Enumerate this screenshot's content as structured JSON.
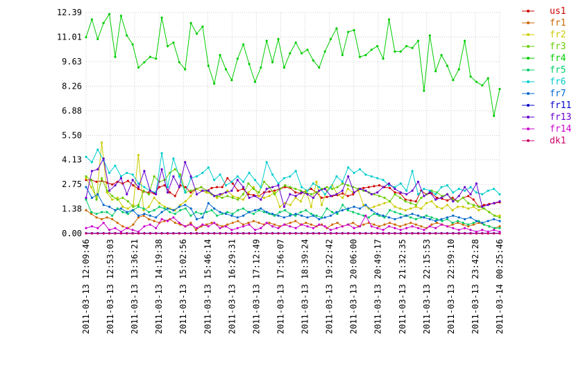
{
  "chart_data": {
    "type": "line",
    "title": "",
    "xlabel": "",
    "ylabel": "",
    "ylim": [
      0,
      12.39
    ],
    "y_ticks": [
      "0.00",
      "1.38",
      "2.75",
      "4.13",
      "5.50",
      "6.88",
      "8.26",
      "9.63",
      "11.01",
      "12.39"
    ],
    "x_ticks": [
      "2011-03-13 12:09:46",
      "2011-03-13 12:53:03",
      "2011-03-13 13:36:21",
      "2011-03-13 14:19:38",
      "2011-03-13 15:02:56",
      "2011-03-13 15:46:14",
      "2011-03-13 16:29:31",
      "2011-03-13 17:12:49",
      "2011-03-13 17:56:07",
      "2011-03-13 18:39:24",
      "2011-03-13 19:22:42",
      "2011-03-13 20:06:00",
      "2011-03-13 20:49:17",
      "2011-03-13 21:32:35",
      "2011-03-13 22:15:53",
      "2011-03-13 22:59:10",
      "2011-03-13 23:42:28",
      "2011-03-14 00:25:46"
    ],
    "grid": true,
    "legend_position": "right",
    "series": [
      {
        "name": "us1",
        "color": "#cc0000",
        "values": [
          3.0,
          3.0,
          2.9,
          2.95,
          2.85,
          2.75,
          2.9,
          2.8,
          2.95,
          2.7,
          2.5,
          2.35,
          2.3,
          2.25,
          2.6,
          2.7,
          2.3,
          2.1,
          2.7,
          2.6,
          2.3,
          2.5,
          2.6,
          2.4,
          2.55,
          2.6,
          2.6,
          3.1,
          2.8,
          2.4,
          2.5,
          2.2,
          2.15,
          2.1,
          2.3,
          2.35,
          2.4,
          2.5,
          2.6,
          2.55,
          2.3,
          2.25,
          2.4,
          2.5,
          2.3,
          2.0,
          2.05,
          2.1,
          2.15,
          2.25,
          2.1,
          2.2,
          2.5,
          2.55,
          2.6,
          2.65,
          2.7,
          2.6,
          2.55,
          2.3,
          2.25,
          1.9,
          1.85,
          1.8,
          2.4,
          2.2,
          2.25,
          2.0,
          1.95,
          1.85,
          2.0,
          1.8,
          2.0,
          2.1,
          1.9,
          1.5,
          1.6,
          1.65,
          1.7,
          1.75
        ]
      },
      {
        "name": "fr1",
        "color": "#cc6600",
        "values": [
          1.3,
          1.1,
          0.9,
          0.8,
          0.9,
          0.8,
          0.6,
          0.4,
          0.3,
          0.5,
          0.9,
          1.0,
          0.8,
          0.7,
          0.6,
          0.7,
          0.8,
          0.6,
          0.5,
          0.4,
          0.6,
          0.2,
          0.4,
          0.5,
          0.6,
          0.5,
          0.4,
          0.5,
          0.6,
          0.7,
          0.5,
          0.6,
          0.7,
          0.6,
          0.5,
          0.6,
          0.5,
          0.4,
          0.5,
          0.6,
          0.7,
          0.5,
          0.6,
          0.5,
          0.4,
          0.5,
          0.3,
          0.5,
          0.6,
          0.4,
          0.5,
          0.6,
          0.4,
          0.5,
          0.6,
          0.5,
          0.4,
          0.5,
          0.6,
          0.5,
          0.4,
          0.5,
          0.6,
          0.5,
          0.4,
          0.3,
          0.5,
          0.6,
          0.5,
          0.4,
          0.5,
          0.6,
          0.5,
          0.4,
          0.5,
          0.6,
          0.5,
          0.4,
          0.3,
          0.4
        ]
      },
      {
        "name": "fr2",
        "color": "#cccc00",
        "values": [
          3.1,
          2.6,
          2.0,
          5.1,
          2.3,
          1.9,
          2.0,
          1.5,
          1.4,
          1.6,
          4.4,
          1.3,
          1.5,
          2.0,
          1.7,
          1.5,
          1.4,
          1.3,
          1.6,
          1.8,
          2.1,
          2.5,
          2.4,
          2.3,
          2.2,
          2.0,
          2.2,
          2.4,
          2.1,
          2.0,
          1.9,
          2.3,
          2.6,
          2.1,
          2.0,
          2.1,
          2.3,
          1.5,
          1.7,
          1.6,
          2.0,
          1.8,
          2.4,
          1.5,
          2.9,
          1.6,
          2.4,
          2.7,
          2.2,
          2.0,
          2.5,
          2.3,
          2.4,
          1.6,
          1.4,
          1.5,
          1.6,
          1.7,
          1.8,
          1.5,
          1.4,
          1.3,
          1.4,
          1.5,
          1.4,
          1.7,
          1.8,
          1.5,
          1.4,
          1.6,
          1.3,
          1.5,
          1.5,
          1.4,
          1.5,
          1.3,
          1.4,
          1.2,
          1.0,
          1.0
        ]
      },
      {
        "name": "fr3",
        "color": "#66cc00",
        "values": [
          3.2,
          3.0,
          1.9,
          3.1,
          2.4,
          2.1,
          1.9,
          2.0,
          1.8,
          1.5,
          1.6,
          2.4,
          2.2,
          3.2,
          2.9,
          3.0,
          3.4,
          3.6,
          3.3,
          2.3,
          2.4,
          2.5,
          2.6,
          2.4,
          2.2,
          2.1,
          2.0,
          2.1,
          2.0,
          1.9,
          2.2,
          2.8,
          2.5,
          2.3,
          2.9,
          2.6,
          2.2,
          2.5,
          2.7,
          2.6,
          2.5,
          2.4,
          2.3,
          2.2,
          2.3,
          2.5,
          2.6,
          2.5,
          2.6,
          2.8,
          2.7,
          2.6,
          2.5,
          2.4,
          2.3,
          2.2,
          2.1,
          2.0,
          1.8,
          2.2,
          2.0,
          1.8,
          1.7,
          1.6,
          2.0,
          2.2,
          2.4,
          2.3,
          2.1,
          2.2,
          1.9,
          1.8,
          2.0,
          1.7,
          1.6,
          1.5,
          1.4,
          1.2,
          1.0,
          0.9
        ]
      },
      {
        "name": "fr4",
        "color": "#00cc00",
        "values": [
          11.0,
          12.0,
          10.9,
          11.8,
          12.3,
          9.9,
          12.2,
          11.1,
          10.6,
          9.3,
          9.6,
          9.9,
          9.8,
          12.1,
          10.5,
          10.7,
          9.6,
          9.2,
          11.8,
          11.2,
          11.6,
          9.4,
          8.4,
          10.0,
          9.2,
          8.6,
          9.8,
          10.6,
          9.5,
          8.5,
          9.3,
          10.8,
          9.6,
          10.9,
          9.3,
          10.1,
          10.7,
          10.1,
          10.3,
          9.7,
          9.3,
          10.2,
          10.9,
          11.5,
          10.0,
          11.3,
          11.4,
          9.9,
          10.0,
          10.3,
          10.5,
          9.8,
          12.0,
          10.2,
          10.2,
          10.5,
          10.4,
          10.8,
          8.0,
          11.1,
          9.1,
          10.0,
          9.4,
          8.6,
          9.2,
          10.8,
          8.8,
          8.5,
          8.3,
          8.7,
          6.6,
          8.1
        ]
      },
      {
        "name": "fr5",
        "color": "#00cc66",
        "values": [
          1.9,
          1.2,
          1.1,
          1.2,
          1.2,
          1.0,
          1.4,
          1.2,
          1.1,
          1.3,
          1.5,
          1.4,
          1.2,
          1.3,
          1.5,
          1.4,
          1.2,
          1.1,
          1.3,
          1.4,
          1.0,
          1.2,
          1.1,
          1.2,
          1.3,
          1.0,
          1.1,
          1.2,
          1.1,
          1.3,
          1.4,
          1.2,
          1.1,
          1.3,
          1.2,
          1.1,
          1.0,
          1.2,
          1.3,
          1.1,
          1.0,
          1.2,
          1.3,
          1.1,
          1.0,
          0.9,
          1.4,
          1.2,
          1.1,
          1.6,
          1.3,
          1.2,
          1.1,
          1.0,
          0.9,
          1.1,
          1.0,
          0.9,
          1.3,
          1.2,
          1.1,
          1.0,
          0.9,
          0.8,
          0.9,
          1.0,
          0.9,
          0.8,
          0.7,
          0.8,
          0.6,
          0.7,
          0.6,
          0.5,
          0.6,
          0.7,
          0.5,
          0.4,
          0.3,
          0.3
        ]
      },
      {
        "name": "fr6",
        "color": "#00cccc",
        "values": [
          4.3,
          4.0,
          4.7,
          4.1,
          3.4,
          3.8,
          3.2,
          3.4,
          3.3,
          2.8,
          2.6,
          2.4,
          2.3,
          4.5,
          2.6,
          4.2,
          3.2,
          2.3,
          3.1,
          3.2,
          3.4,
          3.7,
          3.0,
          3.3,
          2.7,
          2.9,
          3.2,
          2.9,
          3.4,
          3.0,
          2.6,
          4.0,
          3.3,
          2.8,
          3.1,
          3.2,
          3.5,
          2.6,
          2.4,
          2.8,
          2.6,
          2.2,
          2.6,
          3.2,
          2.9,
          3.7,
          3.4,
          3.6,
          3.3,
          3.2,
          3.1,
          3.0,
          2.7,
          2.6,
          2.8,
          2.4,
          3.5,
          2.2,
          2.5,
          2.4,
          2.2,
          2.6,
          2.7,
          2.3,
          2.5,
          2.4,
          2.6,
          2.3,
          2.2,
          2.4,
          2.5,
          2.2
        ]
      },
      {
        "name": "fr7",
        "color": "#0066cc",
        "values": [
          2.6,
          2.0,
          2.2,
          1.6,
          1.5,
          1.3,
          1.4,
          1.2,
          1.3,
          1.0,
          1.1,
          1.0,
          0.9,
          1.2,
          1.4,
          1.3,
          1.5,
          1.6,
          1.4,
          0.8,
          0.9,
          1.7,
          1.4,
          1.2,
          1.1,
          1.0,
          0.9,
          1.0,
          1.2,
          1.3,
          1.4,
          1.2,
          1.1,
          1.0,
          0.9,
          1.0,
          1.1,
          1.0,
          0.9,
          1.0,
          0.8,
          0.9,
          1.0,
          1.2,
          1.3,
          1.4,
          1.5,
          1.4,
          1.6,
          1.3,
          1.1,
          1.0,
          0.9,
          0.8,
          0.9,
          1.0,
          1.1,
          1.0,
          0.9,
          0.8,
          0.7,
          0.8,
          0.9,
          1.0,
          0.9,
          0.8,
          0.9,
          0.7,
          0.6,
          0.7,
          0.8,
          0.7
        ]
      },
      {
        "name": "fr11",
        "color": "#0000cc",
        "values": [
          0.02,
          0.02,
          0.02,
          0.02,
          0.02,
          0.02,
          0.02,
          0.02,
          0.02,
          0.02,
          0.02,
          0.02,
          0.02,
          0.02,
          0.02,
          0.02,
          0.02,
          0.02,
          0.02,
          0.02,
          0.02,
          0.02,
          0.02,
          0.02,
          0.02,
          0.02,
          0.02,
          0.02,
          0.02,
          0.02,
          0.02,
          0.02,
          0.02,
          0.02,
          0.02,
          0.02,
          0.02,
          0.02,
          0.02,
          0.02,
          0.02,
          0.02,
          0.02,
          0.02,
          0.02,
          0.02,
          0.02,
          0.02,
          0.02,
          0.02,
          0.02,
          0.02,
          0.02,
          0.02,
          0.02,
          0.02,
          0.02,
          0.02,
          0.02,
          0.02,
          0.02,
          0.02,
          0.02,
          0.02,
          0.02,
          0.02,
          0.02,
          0.02,
          0.02,
          0.02,
          0.02,
          0.02
        ]
      },
      {
        "name": "fr13",
        "color": "#6600cc",
        "values": [
          2.0,
          3.5,
          3.6,
          4.2,
          2.4,
          2.7,
          3.1,
          2.2,
          3.0,
          2.6,
          3.5,
          2.4,
          2.2,
          3.6,
          2.3,
          3.2,
          2.6,
          4.0,
          3.2,
          2.2,
          2.4,
          2.4,
          2.1,
          2.2,
          2.3,
          2.4,
          3.0,
          2.6,
          2.0,
          2.1,
          1.9,
          2.5,
          2.6,
          2.7,
          1.5,
          2.2,
          2.1,
          2.3,
          2.2,
          2.0,
          2.4,
          2.5,
          2.1,
          2.2,
          2.4,
          3.2,
          2.3,
          2.5,
          2.4,
          2.2,
          2.3,
          2.6,
          2.8,
          2.5,
          2.3,
          2.2,
          2.4,
          2.9,
          2.1,
          2.3,
          1.9,
          2.0,
          2.2,
          1.8,
          2.1,
          2.6,
          2.2,
          2.8,
          1.5,
          1.6,
          1.7,
          1.8
        ]
      },
      {
        "name": "fr14",
        "color": "#cc00cc",
        "values": [
          0.3,
          0.4,
          0.3,
          0.6,
          0.2,
          0.3,
          0.1,
          0.3,
          0.2,
          0.1,
          0.4,
          0.5,
          0.3,
          0.8,
          0.7,
          0.9,
          0.6,
          0.4,
          0.5,
          0.3,
          0.5,
          0.4,
          0.6,
          0.3,
          0.4,
          0.2,
          0.3,
          0.4,
          0.5,
          0.2,
          0.3,
          0.6,
          0.4,
          0.3,
          0.5,
          0.4,
          0.3,
          0.5,
          0.4,
          0.3,
          0.5,
          0.4,
          0.2,
          0.3,
          0.4,
          0.5,
          0.3,
          0.4,
          1.0,
          0.4,
          0.3,
          0.2,
          0.4,
          0.3,
          0.2,
          0.3,
          0.4,
          0.3,
          0.2,
          0.4,
          0.3,
          0.5,
          0.4,
          0.3,
          0.2,
          0.3,
          0.2,
          0.1,
          0.2,
          0.1,
          0.2,
          0.1
        ]
      },
      {
        "name": "dk1",
        "color": "#cc0066",
        "values": [
          0.0,
          0.0,
          0.0,
          0.0,
          0.0,
          0.0,
          0.0,
          0.0,
          0.0,
          0.0,
          0.0,
          0.0,
          0.0,
          0.0,
          0.0,
          0.0,
          0.0,
          0.0,
          0.0,
          0.0,
          0.0,
          0.0,
          0.0,
          0.0,
          0.0,
          0.0,
          0.0,
          0.0,
          0.0,
          0.0,
          0.0,
          0.0,
          0.0,
          0.0,
          0.0,
          0.0,
          0.0,
          0.0,
          0.0,
          0.0,
          0.0,
          0.0,
          0.0,
          0.0,
          0.0,
          0.0,
          0.0,
          0.0,
          0.0,
          0.0,
          0.0,
          0.0,
          0.0,
          0.0,
          0.0,
          0.0,
          0.0,
          0.0,
          0.0,
          0.0,
          0.0,
          0.0,
          0.0,
          0.0,
          0.0,
          0.0,
          0.0,
          0.0,
          0.0,
          0.0,
          0.0,
          0.0
        ]
      }
    ]
  }
}
